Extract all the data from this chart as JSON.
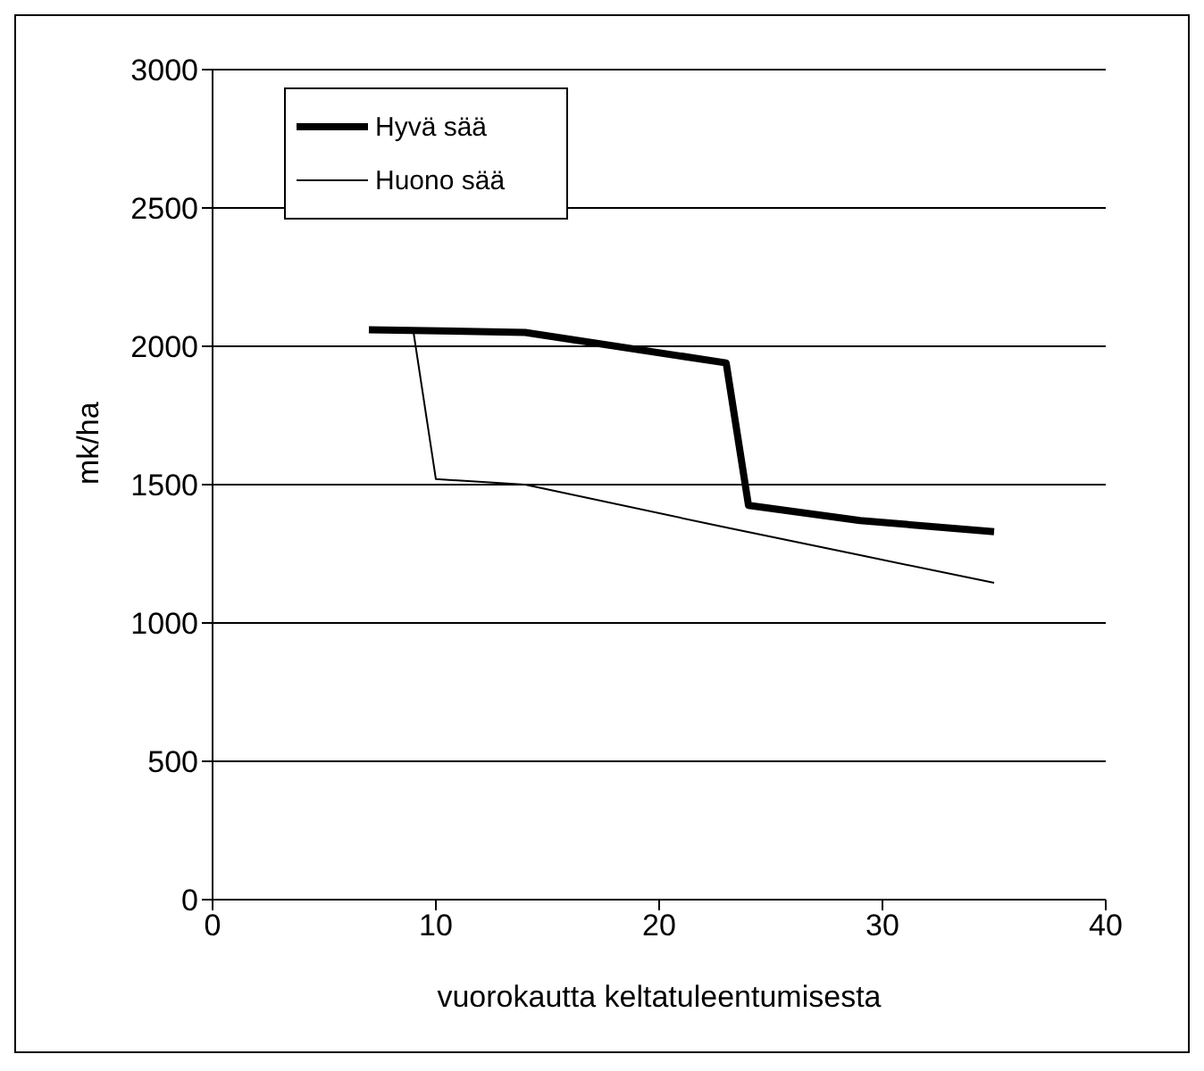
{
  "chart_data": {
    "type": "line",
    "xlabel": "vuorokautta keltatuleentumisesta",
    "ylabel": "mk/ha",
    "xlim": [
      0,
      40
    ],
    "xticks": [
      0,
      10,
      20,
      30,
      40
    ],
    "ylim": [
      0,
      3000
    ],
    "yticks": [
      0,
      500,
      1000,
      1500,
      2000,
      2500,
      3000
    ],
    "grid": "y",
    "legend": "top left",
    "marker": "none",
    "series": [
      {
        "name": "Hyvä sää",
        "color": "#000000",
        "x": [
          7,
          14,
          23,
          24,
          29,
          35
        ],
        "values": [
          2060,
          2050,
          1940,
          1425,
          1370,
          1330
        ]
      },
      {
        "name": "Huono sää",
        "color": "#000000",
        "x": [
          9,
          10,
          14,
          23,
          29,
          35
        ],
        "values": [
          2050,
          1520,
          1500,
          1345,
          1245,
          1145
        ]
      }
    ]
  }
}
